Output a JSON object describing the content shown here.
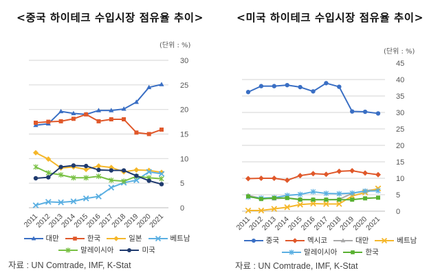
{
  "chart_data": [
    {
      "type": "line",
      "title": "<중국 하이테크 수입시장 점유율 추이>",
      "unit_label": "(단위 : %)",
      "xlabel": "",
      "ylabel": "",
      "x": [
        "2011",
        "2012",
        "2013",
        "2014",
        "2015",
        "2016",
        "2017",
        "2018",
        "2019",
        "2020",
        "2021"
      ],
      "ylim": [
        0,
        30
      ],
      "yticks": [
        0,
        5,
        10,
        15,
        20,
        25,
        30
      ],
      "y_axis_side": "right",
      "grid": true,
      "legend_position": "bottom",
      "series": [
        {
          "name": "대만",
          "color": "#3a6fc4",
          "marker": "triangle",
          "values": [
            16.8,
            17.1,
            19.6,
            19.2,
            19.0,
            19.8,
            19.8,
            20.1,
            21.5,
            24.5,
            25.1
          ]
        },
        {
          "name": "한국",
          "color": "#e0582a",
          "marker": "square",
          "values": [
            17.3,
            17.5,
            17.6,
            18.1,
            19.0,
            17.6,
            18.0,
            18.0,
            15.3,
            15.0,
            15.9
          ]
        },
        {
          "name": "일본",
          "color": "#f5b72a",
          "marker": "diamond",
          "values": [
            11.2,
            9.9,
            8.1,
            8.3,
            7.8,
            8.5,
            8.2,
            7.3,
            7.7,
            7.6,
            7.2
          ]
        },
        {
          "name": "베트남",
          "color": "#5aafe2",
          "marker": "x",
          "values": [
            0.5,
            1.2,
            1.1,
            1.3,
            1.9,
            2.3,
            4.1,
            5.1,
            5.6,
            7.3,
            6.9
          ]
        },
        {
          "name": "말레이시아",
          "color": "#78c043",
          "marker": "star",
          "values": [
            8.3,
            7.1,
            6.7,
            6.1,
            6.1,
            6.4,
            5.6,
            5.4,
            6.4,
            6.1,
            5.9
          ]
        },
        {
          "name": "미국",
          "color": "#1f3a6e",
          "marker": "circle",
          "values": [
            6.0,
            6.2,
            8.3,
            8.6,
            8.5,
            7.7,
            7.6,
            7.6,
            6.5,
            5.5,
            4.8
          ]
        }
      ],
      "legend_rows": [
        [
          0,
          1,
          2,
          3
        ],
        [
          4,
          5
        ]
      ],
      "source": "자료 : UN Comtrade, IMF, K-Stat"
    },
    {
      "type": "line",
      "title": "<미국 하이테크 수입시장 점유율 추이>",
      "unit_label": "(단위 : %)",
      "xlabel": "",
      "ylabel": "",
      "x": [
        "2011",
        "2012",
        "2013",
        "2014",
        "2015",
        "2016",
        "2017",
        "2018",
        "2019",
        "2020",
        "2021"
      ],
      "ylim": [
        0,
        45
      ],
      "yticks": [
        0,
        5,
        10,
        15,
        20,
        25,
        30,
        35,
        40,
        45
      ],
      "y_axis_side": "right",
      "grid": true,
      "legend_position": "bottom",
      "series": [
        {
          "name": "중국",
          "color": "#3a6fc4",
          "marker": "circle",
          "values": [
            36.2,
            38.0,
            38.0,
            38.3,
            37.7,
            36.4,
            38.9,
            37.8,
            30.3,
            30.2,
            29.7
          ]
        },
        {
          "name": "멕시코",
          "color": "#e0582a",
          "marker": "diamond",
          "values": [
            9.9,
            10.0,
            10.0,
            9.4,
            10.8,
            11.4,
            11.2,
            12.1,
            12.3,
            11.6,
            11.1
          ]
        },
        {
          "name": "대만",
          "color": "#a9a9a9",
          "marker": "triangle",
          "values": [
            4.8,
            3.9,
            3.8,
            4.0,
            3.6,
            3.5,
            3.5,
            3.6,
            5.4,
            6.2,
            6.7
          ]
        },
        {
          "name": "베트남",
          "color": "#f5b72a",
          "marker": "x",
          "values": [
            0.2,
            0.2,
            0.7,
            1.2,
            2.0,
            2.3,
            2.2,
            2.2,
            4.6,
            5.7,
            6.9
          ]
        },
        {
          "name": "말레이시아",
          "color": "#5aafe2",
          "marker": "star",
          "values": [
            4.3,
            4.0,
            4.1,
            4.8,
            5.1,
            5.9,
            5.4,
            5.3,
            5.5,
            6.1,
            6.2
          ]
        },
        {
          "name": "한국",
          "color": "#58b030",
          "marker": "square",
          "values": [
            4.5,
            3.7,
            4.0,
            4.0,
            3.5,
            3.5,
            3.5,
            3.5,
            3.5,
            3.9,
            4.1
          ]
        }
      ],
      "legend_rows": [
        [
          0,
          1,
          2,
          3
        ],
        [
          4,
          5
        ]
      ],
      "source": "자료 : UN Comtrade, IMF, K-Stat"
    }
  ]
}
